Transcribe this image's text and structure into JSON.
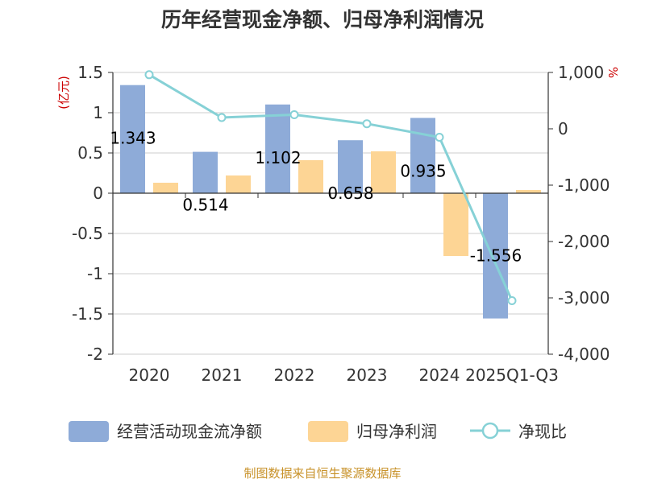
{
  "chart_data": {
    "type": "bar",
    "title": "历年经营现金净额、归母净利润情况",
    "categories": [
      "2020",
      "2021",
      "2022",
      "2023",
      "2024",
      "2025Q1-Q3"
    ],
    "left_axis": {
      "unit": "(亿元)",
      "ylim": [
        -2,
        1.5
      ],
      "ticks": [
        "1.5",
        "1",
        "0.5",
        "0",
        "-0.5",
        "-1",
        "-1.5",
        "-2"
      ],
      "tick_values": [
        1.5,
        1,
        0.5,
        0,
        -0.5,
        -1,
        -1.5,
        -2
      ]
    },
    "right_axis": {
      "unit": "%",
      "ylim": [
        -4000,
        1000
      ],
      "ticks": [
        "1,000",
        "0",
        "-1,000",
        "-2,000",
        "-3,000",
        "-4,000"
      ],
      "tick_values": [
        1000,
        0,
        -1000,
        -2000,
        -3000,
        -4000
      ]
    },
    "grid": true,
    "legend_position": "bottom",
    "series": [
      {
        "name": "经营活动现金流净额",
        "type": "bar",
        "axis": "left",
        "color": "#8eabd8",
        "values": [
          1.343,
          0.514,
          1.102,
          0.658,
          0.935,
          -1.556
        ],
        "labels": [
          "1.343",
          "0.514",
          "1.102",
          "0.658",
          "0.935",
          "-1.556"
        ]
      },
      {
        "name": "归母净利润",
        "type": "bar",
        "axis": "left",
        "color": "#fdd595",
        "values": [
          0.13,
          0.22,
          0.41,
          0.52,
          -0.78,
          0.04
        ]
      },
      {
        "name": "净现比",
        "type": "line",
        "axis": "right",
        "color": "#86d1d6",
        "values": [
          960,
          200,
          250,
          90,
          -150,
          -3050
        ]
      }
    ]
  },
  "source": "制图数据来自恒生聚源数据库"
}
